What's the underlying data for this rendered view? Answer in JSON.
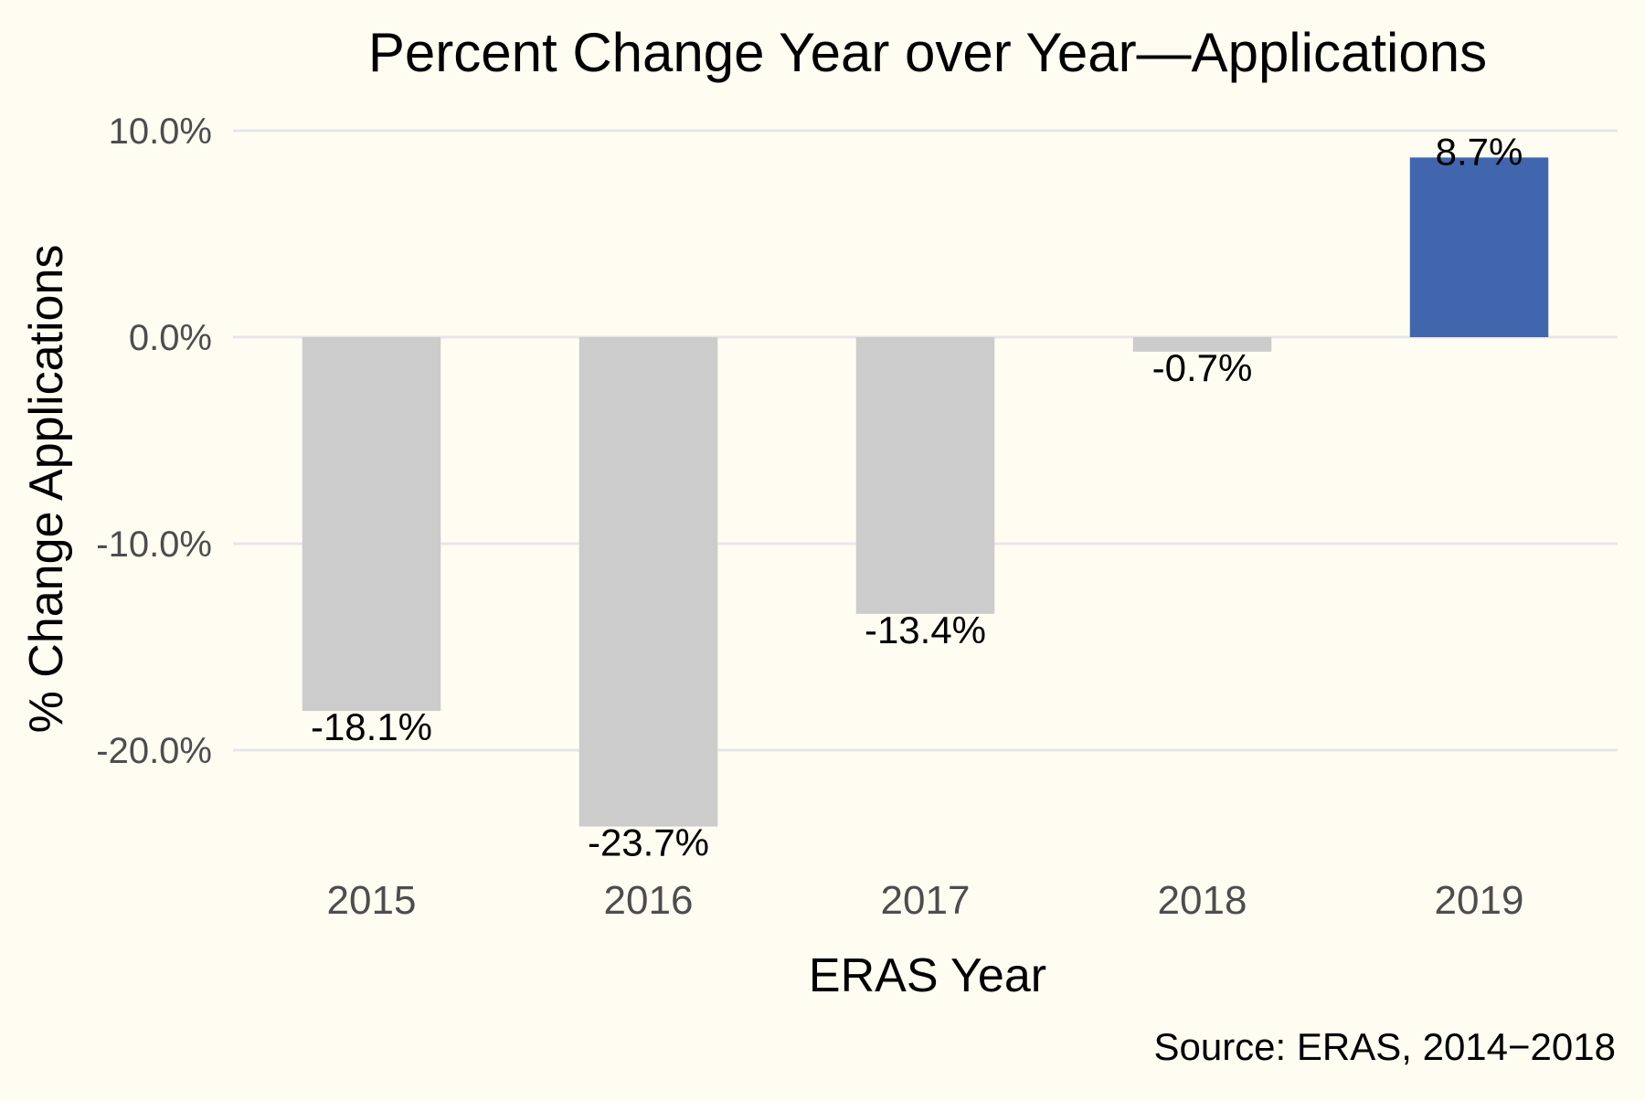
{
  "chart_data": {
    "type": "bar",
    "title": "Percent Change Year over Year—Applications",
    "xlabel": "ERAS Year",
    "ylabel": "% Change Applications",
    "caption": "Source: ERAS, 2014−2018",
    "categories": [
      "2015",
      "2016",
      "2017",
      "2018",
      "2019"
    ],
    "values": [
      -18.1,
      -23.7,
      -13.4,
      -0.7,
      8.7
    ],
    "value_labels": [
      "-18.1%",
      "-23.7%",
      "-13.4%",
      "-0.7%",
      "8.7%"
    ],
    "bar_colors": [
      "#cccccc",
      "#cccccc",
      "#cccccc",
      "#cccccc",
      "#4166ad"
    ],
    "ylim": [
      -26,
      10.5
    ],
    "yticks": [
      10,
      0,
      -10,
      -20
    ],
    "ytick_labels": [
      "10.0%",
      "0.0%",
      "-10.0%",
      "-20.0%"
    ],
    "grid": true,
    "legend": "none"
  }
}
